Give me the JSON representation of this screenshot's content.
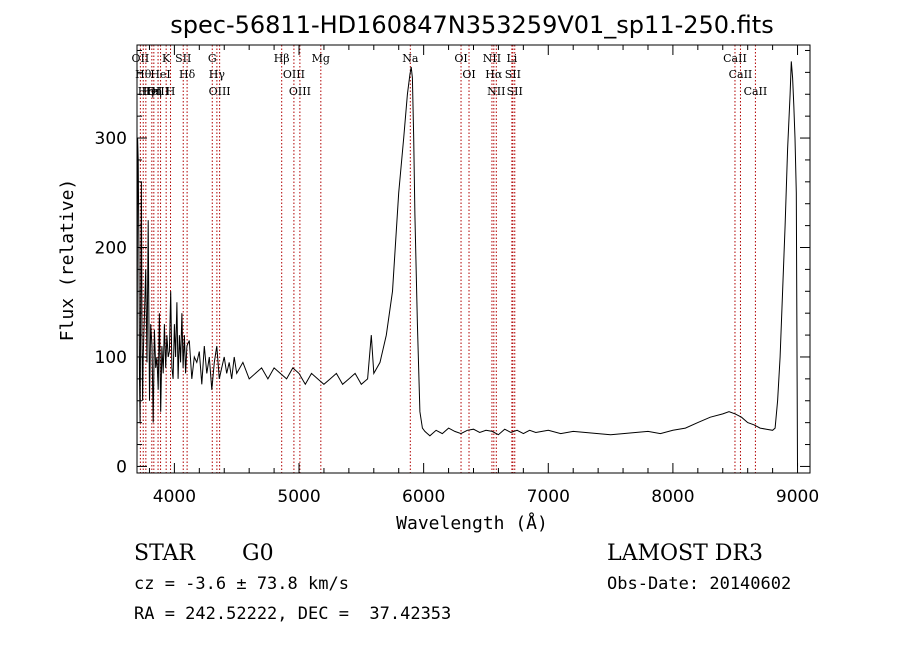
{
  "chart_data": {
    "type": "line",
    "title": "spec-56811-HD160847N353259V01_sp11-250.fits",
    "xlabel": "Wavelength (Å)",
    "ylabel": "Flux (relative)",
    "xlim": [
      3700,
      9100
    ],
    "ylim": [
      -6,
      385
    ],
    "xticks": [
      4000,
      5000,
      6000,
      7000,
      8000,
      9000
    ],
    "yticks": [
      0,
      100,
      200,
      300
    ],
    "grid": false,
    "legend": "none",
    "series_color": "#000000",
    "line_marker_color": "#b00000",
    "series": [
      {
        "x": [
          3700,
          3705,
          3710,
          3715,
          3720,
          3725,
          3730,
          3735,
          3740,
          3745,
          3750,
          3760,
          3770,
          3780,
          3790,
          3800,
          3810,
          3820,
          3830,
          3840,
          3850,
          3860,
          3870,
          3880,
          3890,
          3900,
          3910,
          3920,
          3930,
          3940,
          3950,
          3960,
          3970,
          3980,
          3990,
          4000,
          4010,
          4020,
          4030,
          4040,
          4050,
          4060,
          4070,
          4080,
          4090,
          4100,
          4120,
          4140,
          4160,
          4180,
          4200,
          4220,
          4240,
          4260,
          4280,
          4300,
          4320,
          4340,
          4360,
          4380,
          4400,
          4420,
          4440,
          4460,
          4480,
          4500,
          4550,
          4600,
          4650,
          4700,
          4750,
          4800,
          4850,
          4900,
          4950,
          5000,
          5050,
          5100,
          5150,
          5200,
          5250,
          5300,
          5350,
          5400,
          5450,
          5500,
          5550,
          5580,
          5600,
          5650,
          5700,
          5750,
          5800,
          5840,
          5870,
          5890,
          5900,
          5910,
          5920,
          5930,
          5950,
          5970,
          5990,
          6010,
          6030,
          6050,
          6100,
          6150,
          6200,
          6250,
          6300,
          6350,
          6400,
          6450,
          6500,
          6550,
          6600,
          6650,
          6700,
          6750,
          6800,
          6850,
          6900,
          6950,
          7000,
          7100,
          7200,
          7300,
          7400,
          7500,
          7600,
          7700,
          7800,
          7900,
          8000,
          8100,
          8200,
          8300,
          8400,
          8450,
          8500,
          8550,
          8600,
          8650,
          8700,
          8750,
          8800,
          8820,
          8840,
          8860,
          8880,
          8900,
          8920,
          8940,
          8950,
          8960,
          8970,
          8980,
          8990,
          9000
        ],
        "y": [
          0,
          300,
          280,
          200,
          80,
          40,
          150,
          260,
          120,
          60,
          100,
          140,
          180,
          95,
          225,
          60,
          130,
          110,
          40,
          125,
          90,
          100,
          70,
          140,
          50,
          110,
          85,
          130,
          90,
          120,
          100,
          105,
          160,
          90,
          80,
          130,
          100,
          150,
          80,
          120,
          95,
          140,
          90,
          120,
          85,
          110,
          115,
          80,
          100,
          95,
          105,
          75,
          110,
          85,
          100,
          70,
          95,
          110,
          80,
          90,
          100,
          85,
          95,
          80,
          100,
          85,
          95,
          80,
          85,
          90,
          80,
          90,
          85,
          80,
          90,
          85,
          75,
          85,
          80,
          75,
          80,
          85,
          75,
          80,
          85,
          75,
          80,
          120,
          85,
          95,
          120,
          160,
          250,
          300,
          340,
          358,
          365,
          355,
          300,
          230,
          130,
          50,
          35,
          32,
          30,
          28,
          33,
          30,
          35,
          32,
          30,
          33,
          34,
          31,
          33,
          32,
          29,
          34,
          31,
          33,
          30,
          33,
          31,
          32,
          33,
          30,
          32,
          31,
          30,
          29,
          30,
          31,
          32,
          30,
          33,
          35,
          40,
          45,
          48,
          50,
          48,
          45,
          40,
          38,
          35,
          34,
          33,
          35,
          60,
          100,
          160,
          220,
          290,
          340,
          370,
          355,
          330,
          300,
          250,
          0
        ]
      }
    ],
    "line_markers": [
      {
        "x": 3727,
        "label": "OII"
      },
      {
        "x": 3750,
        "label": "Hθ"
      },
      {
        "x": 3771,
        "label": "Hη"
      },
      {
        "x": 3819,
        "label": "HeI"
      },
      {
        "x": 3835,
        "label": "Hη"
      },
      {
        "x": 3869,
        "label": "OIII"
      },
      {
        "x": 3889,
        "label": "HeI"
      },
      {
        "x": 3934,
        "label": "K"
      },
      {
        "x": 3969,
        "label": "H"
      },
      {
        "x": 4071,
        "label": "SII"
      },
      {
        "x": 4102,
        "label": "Hδ"
      },
      {
        "x": 4304,
        "label": "G"
      },
      {
        "x": 4341,
        "label": "Hγ"
      },
      {
        "x": 4363,
        "label": "OIII"
      },
      {
        "x": 4861,
        "label": "Hβ"
      },
      {
        "x": 4959,
        "label": "OIII"
      },
      {
        "x": 5007,
        "label": "OIII"
      },
      {
        "x": 5175,
        "label": "Mg"
      },
      {
        "x": 5893,
        "label": "Na"
      },
      {
        "x": 6300,
        "label": "OI"
      },
      {
        "x": 6364,
        "label": "OI"
      },
      {
        "x": 6548,
        "label": "NII"
      },
      {
        "x": 6563,
        "label": "Hα"
      },
      {
        "x": 6583,
        "label": "NII"
      },
      {
        "x": 6708,
        "label": "Li"
      },
      {
        "x": 6716,
        "label": "SII"
      },
      {
        "x": 6731,
        "label": "SII"
      },
      {
        "x": 8498,
        "label": "CaII"
      },
      {
        "x": 8542,
        "label": "CaII"
      },
      {
        "x": 8662,
        "label": "CaII"
      }
    ]
  },
  "info": {
    "class_label": "STAR",
    "subclass": "G0",
    "survey": "LAMOST DR3",
    "cz": "cz = -3.6 ± 73.8 km/s",
    "obs_date": "Obs-Date: 20140602",
    "coords": "RA = 242.52222, DEC =  37.42353"
  }
}
